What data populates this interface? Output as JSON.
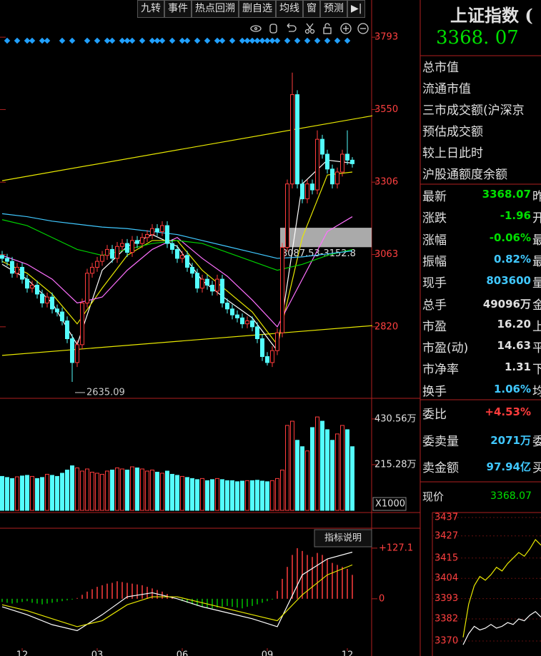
{
  "toolbar": [
    "九转",
    "事件",
    "热点回溯",
    "删自选",
    "均线",
    "窗",
    "预测"
  ],
  "chart_data": [
    {
      "type": "candlestick",
      "up_color": "#ff3c3c",
      "down_color": "#54fcfc",
      "open": [
        3060,
        3050,
        3040,
        3000,
        3020,
        2980,
        2950,
        2960,
        2930,
        2900,
        2920,
        2880,
        2870,
        2840,
        2780,
        2700,
        2760,
        2900,
        3000,
        3020,
        3040,
        3060,
        3080,
        3050,
        3090,
        3100,
        3070,
        3110,
        3100,
        3120,
        3130,
        3150,
        3140,
        3160,
        3100,
        3080,
        3050,
        3060,
        3020,
        3000,
        2950,
        2980,
        2960,
        2940,
        2980,
        2900,
        2880,
        2860,
        2850,
        2830,
        2840,
        2820,
        2780,
        2720,
        2700,
        2740,
        2800,
        3087,
        3300,
        3600,
        3300,
        3250,
        3300,
        3280,
        3450,
        3400,
        3350,
        3300,
        3340,
        3400,
        3380
      ],
      "high": [
        3075,
        3065,
        3055,
        3035,
        3035,
        2995,
        2975,
        2975,
        2945,
        2935,
        2935,
        2895,
        2885,
        2855,
        2795,
        2775,
        2915,
        3015,
        3035,
        3055,
        3075,
        3095,
        3095,
        3105,
        3115,
        3115,
        3125,
        3125,
        3135,
        3145,
        3165,
        3165,
        3175,
        3175,
        3115,
        3095,
        3075,
        3075,
        3035,
        3015,
        2995,
        2995,
        2975,
        2995,
        2995,
        2915,
        2895,
        2875,
        2865,
        2855,
        2855,
        2835,
        2795,
        2735,
        2755,
        2815,
        3102,
        3315,
        3674,
        3615,
        3315,
        3315,
        3315,
        3480,
        3465,
        3415,
        3365,
        3355,
        3415,
        3480,
        3390
      ],
      "low": [
        3035,
        3025,
        2985,
        2985,
        2965,
        2935,
        2935,
        2915,
        2885,
        2885,
        2865,
        2855,
        2825,
        2765,
        2635.09,
        2685,
        2745,
        2885,
        2985,
        3005,
        3025,
        3045,
        3035,
        3035,
        3075,
        3055,
        3055,
        3085,
        3085,
        3105,
        3115,
        3125,
        3125,
        3085,
        3065,
        3035,
        3035,
        3005,
        2985,
        2935,
        2935,
        2945,
        2925,
        2925,
        2885,
        2865,
        2845,
        2835,
        2815,
        2815,
        2805,
        2765,
        2705,
        2690,
        2685,
        2725,
        2785,
        3072,
        3285,
        3285,
        3235,
        3235,
        3265,
        3265,
        3385,
        3335,
        3285,
        3285,
        3325,
        3365,
        3355
      ],
      "close": [
        3050,
        3040,
        3000,
        3020,
        2980,
        2950,
        2960,
        2930,
        2900,
        2920,
        2880,
        2870,
        2840,
        2780,
        2700,
        2760,
        2900,
        3000,
        3020,
        3040,
        3060,
        3080,
        3050,
        3090,
        3100,
        3070,
        3110,
        3100,
        3120,
        3130,
        3150,
        3140,
        3160,
        3100,
        3080,
        3050,
        3060,
        3020,
        3000,
        2950,
        2980,
        2960,
        2940,
        2980,
        2900,
        2880,
        2860,
        2850,
        2830,
        2840,
        2820,
        2780,
        2720,
        2700,
        2740,
        2800,
        3087,
        3300,
        3600,
        3300,
        3250,
        3300,
        3280,
        3450,
        3400,
        3350,
        3300,
        3340,
        3400,
        3380,
        3368
      ],
      "ylim": [
        2587,
        3918
      ],
      "yticks": [
        3793,
        3550,
        3306,
        3063,
        2820
      ],
      "ma": [
        {
          "color": "#ffffff",
          "x": [
            0,
            5,
            10,
            15,
            20,
            25,
            30,
            35,
            40,
            45,
            50,
            55,
            60,
            65,
            70
          ],
          "values": [
            3030,
            2980,
            2900,
            2760,
            3010,
            3090,
            3130,
            3090,
            2975,
            2910,
            2850,
            2740,
            3300,
            3380,
            3370
          ]
        },
        {
          "color": "#e8e800",
          "x": [
            0,
            5,
            10,
            15,
            20,
            25,
            30,
            35,
            40,
            45,
            50,
            55,
            60,
            65,
            70
          ],
          "values": [
            3040,
            3000,
            2930,
            2830,
            2950,
            3060,
            3110,
            3110,
            3010,
            2940,
            2870,
            2760,
            3120,
            3330,
            3340
          ]
        },
        {
          "color": "#ff70ff",
          "x": [
            0,
            5,
            10,
            15,
            20,
            25,
            30,
            35,
            40,
            45,
            50,
            55,
            60,
            65,
            70
          ],
          "values": [
            3060,
            3030,
            2980,
            2900,
            2920,
            3010,
            3080,
            3120,
            3050,
            2990,
            2910,
            2820,
            2980,
            3140,
            3190
          ]
        },
        {
          "color": "#00d000",
          "x": [
            0,
            5,
            10,
            15,
            20,
            25,
            30,
            35,
            40,
            45,
            50,
            55,
            60,
            65,
            70
          ],
          "values": [
            3180,
            3160,
            3120,
            3080,
            3060,
            3080,
            3100,
            3110,
            3100,
            3070,
            3040,
            3010,
            3030,
            3060,
            3080
          ]
        },
        {
          "color": "#40c8ff",
          "x": [
            0,
            5,
            10,
            15,
            20,
            25,
            30,
            35,
            40,
            45,
            50,
            55,
            60,
            65,
            70
          ],
          "values": [
            3200,
            3190,
            3175,
            3165,
            3155,
            3150,
            3140,
            3130,
            3110,
            3090,
            3070,
            3050,
            3055,
            3065,
            3075
          ]
        }
      ],
      "trendlines": [
        {
          "color": "#e8e800",
          "x": [
            0,
            74
          ],
          "values": [
            3311,
            3529
          ]
        },
        {
          "color": "#e8e800",
          "x": [
            0,
            74
          ],
          "values": [
            2724,
            2824
          ]
        }
      ],
      "zone": {
        "start": 56,
        "low": 3087.53,
        "high": 3152.8,
        "label": "3087.53-3152.8"
      },
      "annotations": [
        {
          "x": 14,
          "value": 2635.09
        }
      ]
    },
    {
      "type": "bar",
      "values": [
        160,
        155,
        150,
        158,
        162,
        165,
        160,
        150,
        155,
        170,
        165,
        160,
        175,
        190,
        210,
        200,
        185,
        195,
        180,
        175,
        170,
        185,
        190,
        200,
        195,
        190,
        205,
        200,
        195,
        185,
        190,
        180,
        175,
        185,
        170,
        165,
        160,
        155,
        150,
        145,
        150,
        140,
        145,
        150,
        145,
        140,
        140,
        135,
        138,
        140,
        140,
        142,
        138,
        135,
        140,
        150,
        190,
        400,
        420,
        330,
        300,
        280,
        390,
        440,
        420,
        380,
        330,
        360,
        400,
        380,
        300
      ],
      "ylim": [
        0,
        521
      ],
      "yticks": [
        {
          "value": 430.56,
          "label": "430.56万"
        },
        {
          "value": 215.28,
          "label": "215.28万"
        }
      ],
      "note": "X1000"
    },
    {
      "type": "bar",
      "values": [
        -8,
        -10,
        -12,
        -10,
        -8,
        -6,
        -10,
        -12,
        -14,
        -12,
        -10,
        -8,
        -6,
        -4,
        -2,
        2,
        10,
        18,
        24,
        30,
        34,
        38,
        40,
        44,
        42,
        40,
        38,
        36,
        34,
        30,
        26,
        22,
        18,
        12,
        6,
        0,
        -6,
        -10,
        -14,
        -18,
        -20,
        -22,
        -24,
        -22,
        -20,
        -18,
        -20,
        -22,
        -24,
        -20,
        -18,
        -14,
        -10,
        -6,
        -2,
        20,
        50,
        80,
        110,
        127,
        120,
        110,
        105,
        115,
        110,
        100,
        90,
        85,
        80,
        75,
        60
      ],
      "pos_color": "#ff3c3c",
      "neg_color": "#00c000",
      "lines": [
        {
          "color": "#ffffff",
          "x": [
            0,
            5,
            10,
            15,
            20,
            25,
            30,
            35,
            40,
            45,
            50,
            55,
            60,
            65,
            70
          ],
          "values": [
            -20,
            -40,
            -65,
            -80,
            -40,
            5,
            15,
            0,
            -20,
            -35,
            -50,
            -70,
            60,
            100,
            117
          ]
        },
        {
          "color": "#e8e800",
          "x": [
            0,
            5,
            10,
            15,
            20,
            25,
            30,
            35,
            40,
            45,
            50,
            55,
            60,
            65,
            70
          ],
          "values": [
            -15,
            -30,
            -50,
            -70,
            -55,
            -15,
            5,
            5,
            -10,
            -25,
            -40,
            -55,
            10,
            60,
            85
          ]
        }
      ],
      "ylim": [
        -131,
        177
      ],
      "yticks": [
        {
          "value": 127.1,
          "label": "+127.1"
        },
        0
      ],
      "button": "指标说明",
      "xticks": [
        {
          "value": 4,
          "label": "12"
        },
        {
          "value": 19,
          "label": "03"
        },
        {
          "value": 36,
          "label": "06"
        },
        {
          "value": 53,
          "label": "09"
        },
        {
          "value": 69,
          "label": "12"
        }
      ]
    },
    {
      "type": "line",
      "x": [
        0,
        4,
        8,
        12,
        16,
        20,
        24,
        28,
        32,
        36,
        40,
        44,
        48,
        52,
        56
      ],
      "xlim": [
        0,
        56
      ],
      "ylim": [
        3364.6,
        3439.7
      ],
      "yticks": [
        3437,
        3427,
        3415,
        3404,
        3393,
        3382,
        3370
      ],
      "series": [
        {
          "color": "#e8e800",
          "values": [
            3372,
            3390,
            3400,
            3405,
            3403,
            3406,
            3410,
            3408,
            3412,
            3415,
            3418,
            3416,
            3420,
            3425,
            3422
          ]
        },
        {
          "color": "#ffffff",
          "values": [
            3368,
            3374,
            3378,
            3376,
            3377,
            3379,
            3377,
            3378,
            3380,
            3379,
            3382,
            3381,
            3384,
            3386,
            3383
          ]
        }
      ]
    }
  ],
  "side": {
    "title": "上证指数 (",
    "price": "3368. 07",
    "fields": [
      "总市值",
      "流通市值",
      "三市成交额(沪深京",
      "预估成交额",
      "较上日此时",
      "沪股通额度余额"
    ],
    "quotes": [
      {
        "label": "最新",
        "value": "3368.07",
        "tail": "昨",
        "color": "#00e000"
      },
      {
        "label": "涨跌",
        "value": "-1.96",
        "tail": "开",
        "color": "#00e000"
      },
      {
        "label": "涨幅",
        "value": "-0.06%",
        "tail": "最",
        "color": "#00e000"
      },
      {
        "label": "振幅",
        "value": "0.82%",
        "tail": "最",
        "color": "#40c8ff"
      },
      {
        "label": "现手",
        "value": "803600",
        "tail": "量",
        "color": "#40c8ff"
      },
      {
        "label": "总手",
        "value": "49096万",
        "tail": "金",
        "color": "#e0e0e0"
      },
      {
        "label": "市盈",
        "value": "16.20",
        "tail": "上",
        "color": "#e0e0e0"
      },
      {
        "label": "市盈(动)",
        "value": "14.63",
        "tail": "平",
        "color": "#e0e0e0"
      },
      {
        "label": "市净率",
        "value": "1.31",
        "tail": "下",
        "color": "#e0e0e0"
      },
      {
        "label": "换手",
        "value": "1.06%",
        "tail": "均",
        "color": "#40c8ff"
      }
    ],
    "order": [
      {
        "label": "委比",
        "value": "+4.53%",
        "color": "#ff3c3c"
      },
      {
        "label": "委卖量",
        "value": "2071万",
        "tail": "委",
        "color": "#40c8ff"
      },
      {
        "label": "卖金额",
        "value": "97.94亿",
        "tail": "买",
        "color": "#40c8ff"
      }
    ],
    "now": {
      "label": "现价",
      "value": "3368.07",
      "color": "#00e000"
    }
  }
}
